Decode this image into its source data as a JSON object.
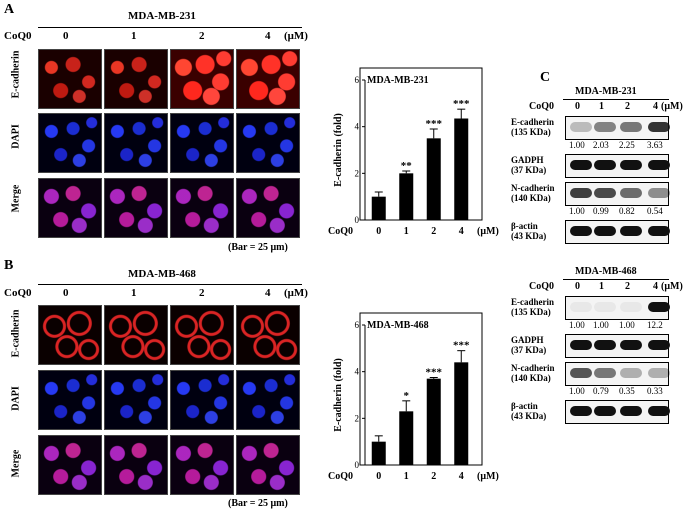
{
  "panelA": {
    "letter": "A",
    "cell_line": "MDA-MB-231",
    "coq0_label": "CoQ0",
    "doses": [
      "0",
      "1",
      "2",
      "4"
    ],
    "unit": "(μM)",
    "row_labels": [
      "E-cadherin",
      "DAPI",
      "Merge"
    ],
    "scale_bar": "(Bar = 25 μm)"
  },
  "panelB": {
    "letter": "B",
    "cell_line": "MDA-MB-468",
    "coq0_label": "CoQ0",
    "doses": [
      "0",
      "1",
      "2",
      "4"
    ],
    "unit": "(μM)",
    "row_labels": [
      "E-cadherin",
      "DAPI",
      "Merge"
    ],
    "scale_bar": "(Bar = 25 μm)"
  },
  "chart_data": [
    {
      "type": "bar",
      "title": "MDA-MB-231",
      "categories": [
        "0",
        "1",
        "2",
        "4"
      ],
      "values": [
        1.0,
        2.0,
        3.5,
        4.35
      ],
      "errors": [
        0.2,
        0.1,
        0.4,
        0.4
      ],
      "significance": [
        "",
        "**",
        "***",
        "***"
      ],
      "ylabel": "E-cadherin (fold)",
      "xlabel_prefix": "CoQ0",
      "xunit": "(μM)",
      "ylim": [
        0,
        6
      ],
      "yticks": [
        "0",
        "2",
        "4",
        "6"
      ]
    },
    {
      "type": "bar",
      "title": "MDA-MB-468",
      "categories": [
        "0",
        "1",
        "2",
        "4"
      ],
      "values": [
        1.0,
        2.3,
        3.7,
        4.4
      ],
      "errors": [
        0.25,
        0.45,
        0.05,
        0.5
      ],
      "significance": [
        "",
        "*",
        "***",
        "***"
      ],
      "ylabel": "E-cadherin (fold)",
      "xlabel_prefix": "CoQ0",
      "xunit": "(μM)",
      "ylim": [
        0,
        6
      ],
      "yticks": [
        "0",
        "2",
        "4",
        "6"
      ]
    }
  ],
  "panelC": {
    "letter": "C",
    "top": {
      "cell_line": "MDA-MB-231",
      "coq0_label": "CoQ0",
      "doses": [
        "0",
        "1",
        "2",
        "4"
      ],
      "unit": "(μM)",
      "rows": [
        {
          "label1": "E-cadherin",
          "label2": "(135 KDa)",
          "values": [
            "1.00",
            "2.03",
            "2.25",
            "3.63"
          ]
        },
        {
          "label1": "GADPH",
          "label2": "(37 KDa)",
          "values": []
        },
        {
          "label1": "N-cadherin",
          "label2": "(140 KDa)",
          "values": [
            "1.00",
            "0.99",
            "0.82",
            "0.54"
          ]
        },
        {
          "label1": "β-actin",
          "label2": "(43 KDa)",
          "values": []
        }
      ]
    },
    "bottom": {
      "cell_line": "MDA-MB-468",
      "coq0_label": "CoQ0",
      "doses": [
        "0",
        "1",
        "2",
        "4"
      ],
      "unit": "(μM)",
      "rows": [
        {
          "label1": "E-cadherin",
          "label2": "(135 KDa)",
          "values": [
            "1.00",
            "1.00",
            "1.00",
            "12.2"
          ]
        },
        {
          "label1": "GADPH",
          "label2": "(37 KDa)",
          "values": []
        },
        {
          "label1": "N-cadherin",
          "label2": "(140 KDa)",
          "values": [
            "1.00",
            "0.79",
            "0.35",
            "0.33"
          ]
        },
        {
          "label1": "β-actin",
          "label2": "(43 KDa)",
          "values": []
        }
      ]
    }
  }
}
